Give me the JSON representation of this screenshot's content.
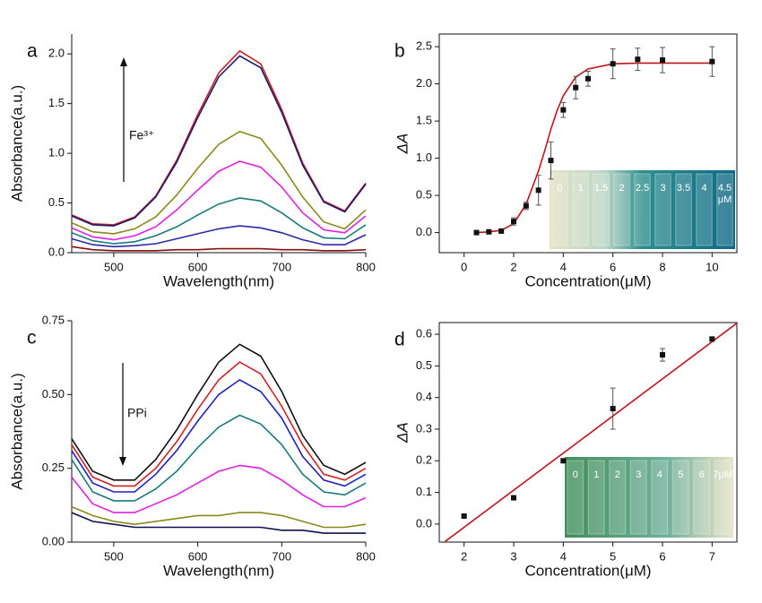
{
  "chart_data": [
    {
      "type": "line",
      "label": "a",
      "xlabel": "Wavelength(nm)",
      "ylabel": "Absorbance(a.u.)",
      "annotation": "Fe³⁺",
      "x": [
        450,
        475,
        500,
        525,
        550,
        575,
        600,
        625,
        650,
        675,
        700,
        725,
        750,
        775,
        800
      ],
      "xlim": [
        450,
        800
      ],
      "xticks": [
        500,
        600,
        700,
        800
      ],
      "ylim": [
        0,
        2.2
      ],
      "yticks": [
        {
          "value": 0,
          "label": "0.0"
        },
        0.5,
        {
          "value": 1,
          "label": "1.0"
        },
        1.5,
        {
          "value": 2,
          "label": "2.0"
        }
      ],
      "series": [
        {
          "color": "#cc2020",
          "values": [
            0.38,
            0.29,
            0.28,
            0.36,
            0.57,
            0.93,
            1.39,
            1.81,
            2.03,
            1.9,
            1.44,
            0.9,
            0.52,
            0.42,
            0.7
          ]
        },
        {
          "color": "#1a1a6e",
          "values": [
            0.37,
            0.28,
            0.27,
            0.35,
            0.56,
            0.91,
            1.36,
            1.77,
            1.98,
            1.86,
            1.41,
            0.88,
            0.51,
            0.41,
            0.69
          ]
        },
        {
          "color": "#8a8a1a",
          "values": [
            0.3,
            0.21,
            0.19,
            0.24,
            0.36,
            0.58,
            0.85,
            1.09,
            1.22,
            1.15,
            0.88,
            0.56,
            0.31,
            0.24,
            0.43
          ]
        },
        {
          "color": "#e020e0",
          "values": [
            0.25,
            0.16,
            0.13,
            0.17,
            0.26,
            0.43,
            0.63,
            0.82,
            0.92,
            0.86,
            0.66,
            0.4,
            0.23,
            0.2,
            0.37
          ]
        },
        {
          "color": "#1a7a7a",
          "values": [
            0.2,
            0.12,
            0.09,
            0.11,
            0.17,
            0.26,
            0.38,
            0.49,
            0.55,
            0.52,
            0.4,
            0.25,
            0.15,
            0.14,
            0.28
          ]
        },
        {
          "color": "#2a2aa8",
          "values": [
            0.14,
            0.08,
            0.06,
            0.07,
            0.09,
            0.14,
            0.19,
            0.24,
            0.27,
            0.25,
            0.2,
            0.13,
            0.08,
            0.08,
            0.18
          ]
        },
        {
          "color": "#8a1010",
          "values": [
            0.06,
            0.03,
            0.02,
            0.02,
            0.02,
            0.03,
            0.03,
            0.04,
            0.04,
            0.04,
            0.03,
            0.03,
            0.02,
            0.02,
            0.03
          ]
        }
      ]
    },
    {
      "type": "scatter",
      "label": "b",
      "xlabel": "Concentration(μM)",
      "ylabel": "ΔA",
      "color": "#111111",
      "x": [
        0.5,
        1,
        1.5,
        2,
        2.5,
        3,
        3.5,
        4,
        4.5,
        5,
        6,
        7,
        8,
        10
      ],
      "values": [
        0.0,
        0.01,
        0.02,
        0.15,
        0.36,
        0.57,
        0.97,
        1.65,
        1.95,
        2.07,
        2.27,
        2.33,
        2.32,
        2.3
      ],
      "errors": [
        0.02,
        0.02,
        0.02,
        0.05,
        0.05,
        0.2,
        0.25,
        0.1,
        0.15,
        0.1,
        0.2,
        0.15,
        0.17,
        0.2
      ],
      "fit": {
        "color": "#c0141a",
        "x": [
          0.5,
          1,
          1.5,
          2,
          2.5,
          3,
          3.25,
          3.5,
          3.75,
          4,
          4.5,
          5,
          6,
          7,
          8,
          10
        ],
        "values": [
          0.0,
          0.01,
          0.03,
          0.12,
          0.38,
          0.83,
          1.1,
          1.39,
          1.64,
          1.84,
          2.09,
          2.2,
          2.27,
          2.28,
          2.28,
          2.28
        ]
      },
      "xlim": [
        -1,
        11
      ],
      "xticks": [
        0,
        2,
        4,
        6,
        8,
        10
      ],
      "ylim": [
        -0.27,
        2.67
      ],
      "yticks": [
        {
          "value": 0,
          "label": "0.0"
        },
        0.5,
        {
          "value": 1,
          "label": "1.0"
        },
        1.5,
        {
          "value": 2,
          "label": "2.0"
        },
        2.5
      ],
      "inset_labels": [
        "0",
        "1",
        "1.5",
        "2",
        "2.5",
        "3",
        "3.5",
        "4",
        "4.5"
      ],
      "inset_unit": "μM"
    },
    {
      "type": "line",
      "label": "c",
      "xlabel": "Wavelength(nm)",
      "ylabel": "Absorbance(a.u.)",
      "annotation": "PPi",
      "x": [
        450,
        475,
        500,
        525,
        550,
        575,
        600,
        625,
        650,
        675,
        700,
        725,
        750,
        775,
        800
      ],
      "xlim": [
        450,
        800
      ],
      "xticks": [
        500,
        600,
        700,
        800
      ],
      "ylim": [
        0,
        0.75
      ],
      "yticks": [
        {
          "value": 0,
          "label": "0.00"
        },
        0.25,
        {
          "value": 0.5,
          "label": "0.50"
        },
        0.75
      ],
      "series": [
        {
          "color": "#111111",
          "values": [
            0.35,
            0.24,
            0.21,
            0.21,
            0.28,
            0.38,
            0.5,
            0.61,
            0.67,
            0.63,
            0.51,
            0.36,
            0.26,
            0.23,
            0.27
          ]
        },
        {
          "color": "#d02020",
          "values": [
            0.33,
            0.22,
            0.19,
            0.19,
            0.25,
            0.34,
            0.45,
            0.55,
            0.61,
            0.57,
            0.46,
            0.33,
            0.23,
            0.21,
            0.25
          ]
        },
        {
          "color": "#2020c0",
          "values": [
            0.31,
            0.2,
            0.17,
            0.17,
            0.23,
            0.31,
            0.41,
            0.5,
            0.55,
            0.51,
            0.42,
            0.29,
            0.21,
            0.19,
            0.23
          ]
        },
        {
          "color": "#1a7a7a",
          "values": [
            0.28,
            0.17,
            0.14,
            0.14,
            0.18,
            0.24,
            0.32,
            0.39,
            0.43,
            0.4,
            0.33,
            0.23,
            0.17,
            0.16,
            0.2
          ]
        },
        {
          "color": "#e020e0",
          "values": [
            0.22,
            0.13,
            0.1,
            0.1,
            0.13,
            0.16,
            0.2,
            0.24,
            0.26,
            0.25,
            0.21,
            0.16,
            0.12,
            0.12,
            0.15
          ]
        },
        {
          "color": "#8a8a1a",
          "values": [
            0.12,
            0.09,
            0.07,
            0.06,
            0.07,
            0.08,
            0.09,
            0.09,
            0.1,
            0.1,
            0.09,
            0.07,
            0.05,
            0.05,
            0.06
          ]
        },
        {
          "color": "#101050",
          "values": [
            0.1,
            0.07,
            0.06,
            0.05,
            0.05,
            0.05,
            0.05,
            0.05,
            0.05,
            0.05,
            0.04,
            0.04,
            0.03,
            0.03,
            0.03
          ]
        }
      ]
    },
    {
      "type": "scatter",
      "label": "d",
      "xlabel": "Concentration(μM)",
      "ylabel": "ΔA",
      "color": "#111111",
      "x": [
        2,
        3,
        4,
        5,
        6,
        7
      ],
      "values": [
        0.025,
        0.083,
        0.2,
        0.365,
        0.535,
        0.585
      ],
      "errors": [
        0.005,
        0.005,
        0.005,
        0.065,
        0.02,
        0.005
      ],
      "fit": {
        "color": "#c0141a",
        "x": [
          1.62,
          7.5
        ],
        "values": [
          -0.055,
          0.635
        ]
      },
      "xlim": [
        1.5,
        7.5
      ],
      "xticks": [
        2,
        3,
        4,
        5,
        6,
        7
      ],
      "ylim": [
        -0.057,
        0.637
      ],
      "yticks": [
        {
          "value": 0,
          "label": "0.0"
        },
        0.1,
        0.2,
        0.3,
        0.4,
        0.5,
        0.6
      ],
      "inset_labels": [
        "0",
        "1",
        "2",
        "3",
        "4",
        "5",
        "6",
        "7μM"
      ]
    }
  ]
}
